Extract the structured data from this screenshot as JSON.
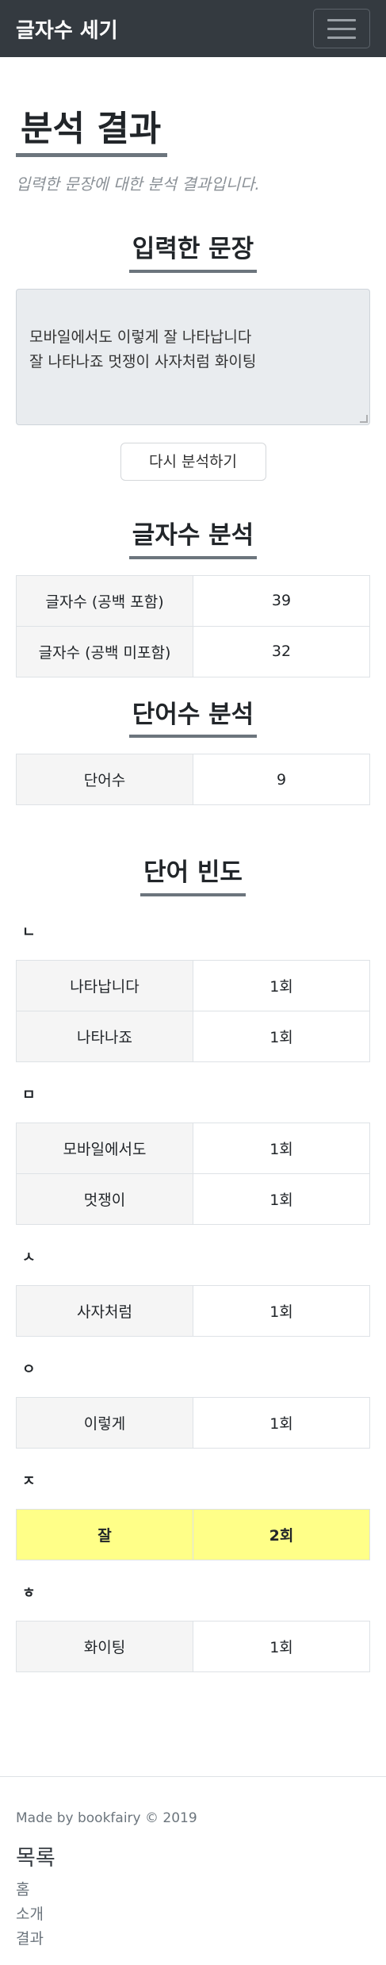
{
  "navbar": {
    "brand": "글자수 세기",
    "toggler_icon": "hamburger-icon"
  },
  "page": {
    "title": "분석 결과",
    "lead": "입력한 문장에 대한 분석 결과입니다."
  },
  "input_section": {
    "title": "입력한 문장",
    "text": "모바일에서도 이렇게 잘 나타납니다\n잘 나타나죠 멋쟁이 사자처럼 화이팅",
    "reanalyze_label": "다시 분석하기"
  },
  "char_section": {
    "title": "글자수 분석",
    "rows": [
      {
        "key": "글자수 (공백 포함)",
        "value": "39"
      },
      {
        "key": "글자수 (공백 미포함)",
        "value": "32"
      }
    ]
  },
  "word_section": {
    "title": "단어수 분석",
    "rows": [
      {
        "key": "단어수",
        "value": "9"
      }
    ]
  },
  "freq_section": {
    "title": "단어 빈도",
    "groups": [
      {
        "label": "ㄴ",
        "rows": [
          {
            "word": "나타납니다",
            "count": "1회"
          },
          {
            "word": "나타나죠",
            "count": "1회"
          }
        ]
      },
      {
        "label": "ㅁ",
        "rows": [
          {
            "word": "모바일에서도",
            "count": "1회"
          },
          {
            "word": "멋쟁이",
            "count": "1회"
          }
        ]
      },
      {
        "label": "ㅅ",
        "rows": [
          {
            "word": "사자처럼",
            "count": "1회"
          }
        ]
      },
      {
        "label": "ㅇ",
        "rows": [
          {
            "word": "이렇게",
            "count": "1회"
          }
        ]
      },
      {
        "label": "ㅈ",
        "rows": [
          {
            "word": "잘",
            "count": "2회"
          }
        ]
      },
      {
        "label": "ㅎ",
        "rows": [
          {
            "word": "화이팅",
            "count": "1회"
          }
        ]
      }
    ]
  },
  "footer": {
    "credit": "Made by bookfairy © 2019",
    "menu_title": "목록",
    "menu_items": [
      "홈",
      "소개",
      "결과"
    ]
  },
  "colors": {
    "navbar": "#343a40",
    "highlight": "#ffff88"
  }
}
